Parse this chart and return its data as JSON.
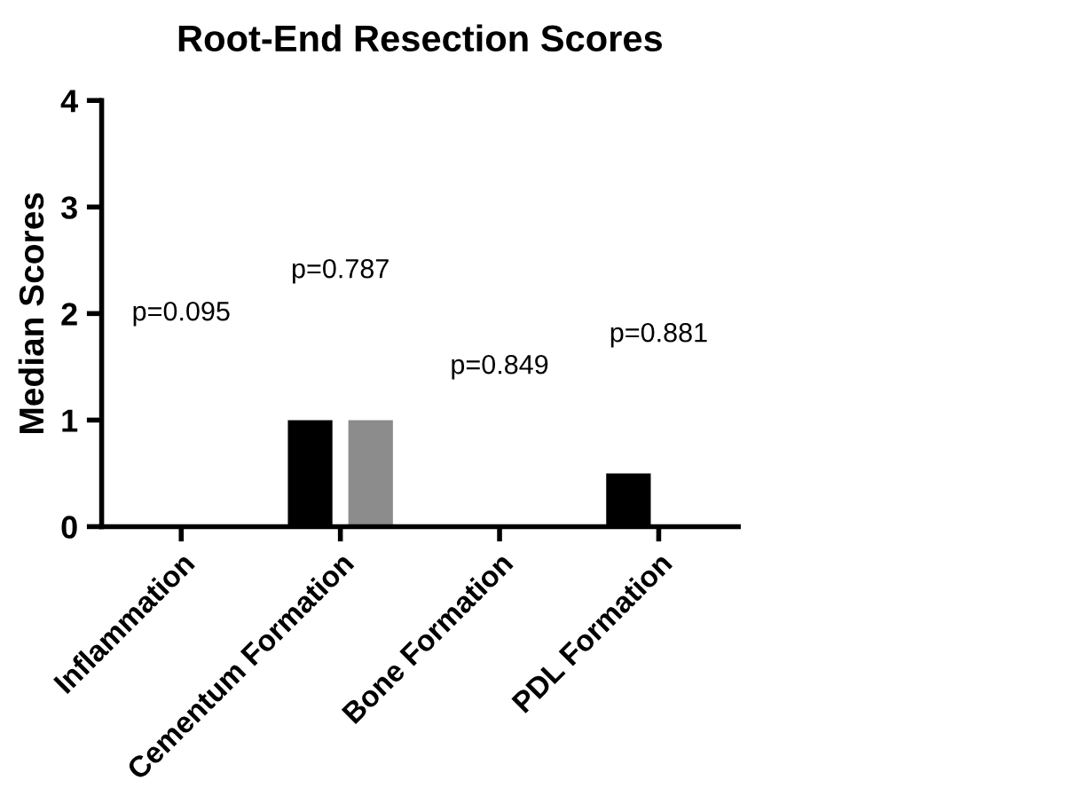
{
  "chart_data": {
    "type": "bar",
    "title": "Root-End Resection Scores",
    "ylabel": "Median Scores",
    "categories": [
      "Inflammation",
      "Cementum Formation",
      "Bone Formation",
      "PDL Formation"
    ],
    "series": [
      {
        "color": "#000000",
        "values": [
          0,
          1,
          0,
          0.5
        ]
      },
      {
        "color": "#8c8c8c",
        "values": [
          0,
          1,
          0,
          0
        ]
      }
    ],
    "ylim": [
      0,
      4
    ],
    "yticks": [
      0,
      1,
      2,
      3,
      4
    ],
    "grid": false,
    "annotations": [
      "p=0.095",
      "p=0.787",
      "p=0.849",
      "p=0.881"
    ]
  }
}
